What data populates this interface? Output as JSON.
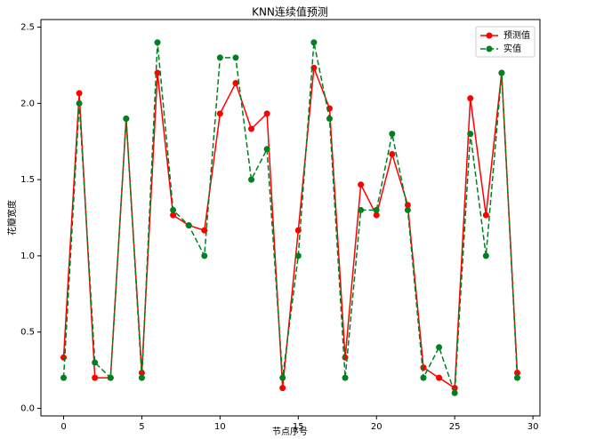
{
  "chart_data": {
    "type": "line",
    "title": "KNN连续值预测",
    "x_label": "节点序号",
    "y_label": "花瓣宽度",
    "x": [
      0,
      1,
      2,
      3,
      4,
      5,
      6,
      7,
      8,
      9,
      10,
      11,
      12,
      13,
      14,
      15,
      16,
      17,
      18,
      19,
      20,
      21,
      22,
      23,
      24,
      25,
      26,
      27,
      28,
      29
    ],
    "series": [
      {
        "name": "预测值",
        "color": "#ff0000",
        "linestyle": "solid",
        "values": [
          0.333,
          2.067,
          0.2,
          0.2,
          1.9,
          0.233,
          2.2,
          1.267,
          1.2,
          1.167,
          1.933,
          2.133,
          1.833,
          1.933,
          0.133,
          1.167,
          2.233,
          1.967,
          0.333,
          1.467,
          1.267,
          1.667,
          1.333,
          0.267,
          0.2,
          0.133,
          2.033,
          1.267,
          2.2,
          0.233
        ]
      },
      {
        "name": "实值",
        "color": "#008020",
        "linestyle": "dashed",
        "values": [
          0.2,
          2.0,
          0.3,
          0.2,
          1.9,
          0.2,
          2.4,
          1.3,
          1.2,
          1.0,
          2.3,
          2.3,
          1.5,
          1.7,
          0.2,
          1.0,
          2.4,
          1.9,
          0.2,
          1.3,
          1.3,
          1.8,
          1.3,
          0.2,
          0.4,
          0.1,
          1.8,
          1.0,
          2.2,
          0.2
        ]
      }
    ],
    "xlim": [
      -1.45,
      30.45
    ],
    "ylim": [
      -0.05,
      2.55
    ],
    "xticks": [
      0,
      5,
      10,
      15,
      20,
      25,
      30
    ],
    "yticks": [
      {
        "value": 0,
        "label": "0.0"
      },
      0.5,
      {
        "value": 1,
        "label": "1.0"
      },
      1.5,
      {
        "value": 2,
        "label": "2.0"
      },
      2.5
    ],
    "legend": "upper right",
    "grid": false
  }
}
